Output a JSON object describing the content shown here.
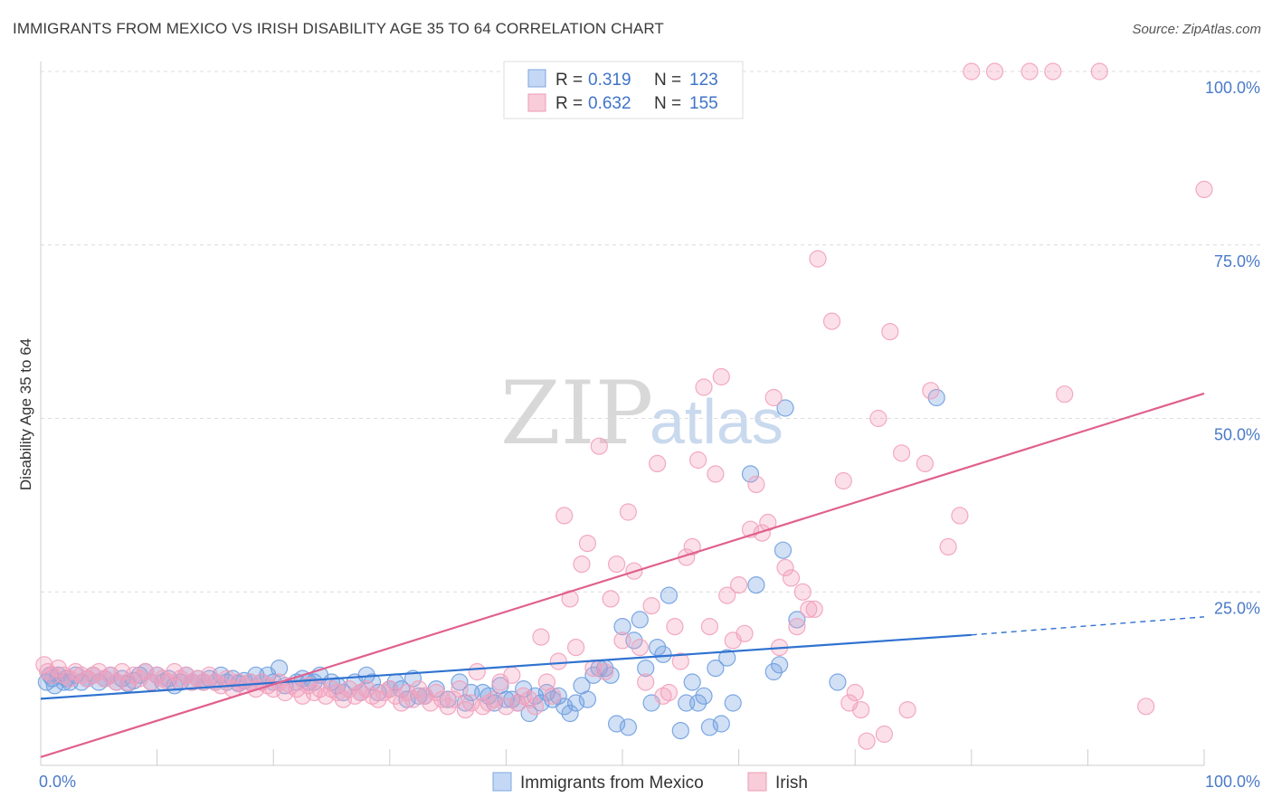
{
  "title": "IMMIGRANTS FROM MEXICO VS IRISH DISABILITY AGE 35 TO 64 CORRELATION CHART",
  "source": "Source: ZipAtlas.com",
  "watermark": {
    "zip": "ZIP",
    "atlas": "atlas"
  },
  "legend": {
    "r_label": "R =",
    "n_label": "N =",
    "rows": [
      {
        "r": "0.319",
        "n": "123"
      },
      {
        "r": "0.632",
        "n": "155"
      }
    ]
  },
  "chart_data": {
    "type": "scatter",
    "xlabel": "",
    "ylabel": "Disability Age 35 to 64",
    "xlim": [
      0,
      100
    ],
    "ylim": [
      0,
      100
    ],
    "x_tick_labels": [
      {
        "value": 0,
        "label": "0.0%"
      },
      {
        "value": 100,
        "label": "100.0%"
      }
    ],
    "y_tick_labels": [
      {
        "value": 25,
        "label": "25.0%"
      },
      {
        "value": 50,
        "label": "50.0%"
      },
      {
        "value": 75,
        "label": "75.0%"
      },
      {
        "value": 100,
        "label": "100.0%"
      }
    ],
    "grid": "horizontal dashed",
    "legend_position": "top-center",
    "series": [
      {
        "name": "Immigrants from Mexico",
        "color": "#6f9fe0",
        "line_color": "#2f72d0",
        "trend": {
          "x0": 0,
          "y0": 9.6,
          "x1": 80,
          "y1": 18.8,
          "x_dashed_end": 100,
          "y_dashed_end": 21.4
        },
        "points": [
          [
            0.5,
            12
          ],
          [
            0.8,
            13
          ],
          [
            1,
            12.5
          ],
          [
            1.2,
            11.5
          ],
          [
            1.5,
            13
          ],
          [
            2,
            12
          ],
          [
            2.2,
            12.5
          ],
          [
            2.5,
            12
          ],
          [
            3,
            13
          ],
          [
            3.5,
            12
          ],
          [
            4,
            12.5
          ],
          [
            4.5,
            13
          ],
          [
            5,
            12
          ],
          [
            5.5,
            12.5
          ],
          [
            6,
            13
          ],
          [
            6.5,
            12
          ],
          [
            7,
            12.5
          ],
          [
            7.5,
            11.8
          ],
          [
            8,
            12.2
          ],
          [
            8.5,
            13
          ],
          [
            9,
            13.5
          ],
          [
            9.5,
            12
          ],
          [
            10,
            13
          ],
          [
            10.5,
            12
          ],
          [
            11,
            12.5
          ],
          [
            11.5,
            11.5
          ],
          [
            12,
            12
          ],
          [
            12.5,
            13
          ],
          [
            13,
            12
          ],
          [
            13.5,
            12.5
          ],
          [
            14,
            12
          ],
          [
            14.5,
            12.5
          ],
          [
            15,
            12
          ],
          [
            15.5,
            13
          ],
          [
            16,
            12
          ],
          [
            16.5,
            12.5
          ],
          [
            17,
            11.8
          ],
          [
            17.5,
            12.2
          ],
          [
            18,
            12
          ],
          [
            18.5,
            13
          ],
          [
            19,
            12
          ],
          [
            19.5,
            13
          ],
          [
            20,
            12
          ],
          [
            20.5,
            14
          ],
          [
            21,
            11.5
          ],
          [
            22,
            12
          ],
          [
            22.5,
            12.5
          ],
          [
            23,
            12
          ],
          [
            23.5,
            12
          ],
          [
            24,
            13
          ],
          [
            25,
            12
          ],
          [
            25.5,
            11.5
          ],
          [
            26,
            10.5
          ],
          [
            27,
            12
          ],
          [
            27.5,
            10.5
          ],
          [
            28,
            13
          ],
          [
            28.5,
            12
          ],
          [
            29,
            10.5
          ],
          [
            30,
            11
          ],
          [
            30.5,
            12
          ],
          [
            31,
            11
          ],
          [
            31.5,
            9.5
          ],
          [
            32,
            12.5
          ],
          [
            32.5,
            10
          ],
          [
            33,
            10
          ],
          [
            34,
            11
          ],
          [
            35,
            9.5
          ],
          [
            36,
            12
          ],
          [
            36.5,
            9
          ],
          [
            37,
            10.5
          ],
          [
            38,
            10.5
          ],
          [
            38.5,
            10
          ],
          [
            39,
            9
          ],
          [
            39.5,
            11.5
          ],
          [
            40,
            9.5
          ],
          [
            40.5,
            9.5
          ],
          [
            41,
            9
          ],
          [
            41.5,
            11
          ],
          [
            42,
            7.5
          ],
          [
            42.5,
            10
          ],
          [
            43,
            9
          ],
          [
            43.5,
            10.5
          ],
          [
            44,
            9.5
          ],
          [
            44.5,
            10
          ],
          [
            45,
            8.5
          ],
          [
            45.5,
            7.5
          ],
          [
            46,
            9
          ],
          [
            46.5,
            11.5
          ],
          [
            47,
            9.5
          ],
          [
            47.5,
            13
          ],
          [
            48,
            14
          ],
          [
            48.5,
            14
          ],
          [
            49,
            13
          ],
          [
            49.5,
            6
          ],
          [
            50,
            20
          ],
          [
            50.5,
            5.5
          ],
          [
            51,
            18
          ],
          [
            51.5,
            21
          ],
          [
            52,
            14
          ],
          [
            52.5,
            9
          ],
          [
            53,
            17
          ],
          [
            53.5,
            16
          ],
          [
            54,
            24.5
          ],
          [
            55,
            5
          ],
          [
            55.5,
            9
          ],
          [
            56,
            12
          ],
          [
            56.5,
            9
          ],
          [
            57,
            10
          ],
          [
            57.5,
            5.5
          ],
          [
            58,
            14
          ],
          [
            58.5,
            6
          ],
          [
            59,
            15.5
          ],
          [
            59.5,
            9
          ],
          [
            61,
            42
          ],
          [
            61.5,
            26
          ],
          [
            63,
            13.5
          ],
          [
            63.5,
            14.5
          ],
          [
            63.8,
            31
          ],
          [
            64,
            51.5
          ],
          [
            65,
            21
          ],
          [
            68.5,
            12
          ],
          [
            77,
            53
          ]
        ]
      },
      {
        "name": "Irish",
        "color": "#f2a0bb",
        "line_color": "#e0608e",
        "trend": {
          "x0": 0,
          "y0": 1.2,
          "x1": 100,
          "y1": 53.6
        },
        "points": [
          [
            0.3,
            14.5
          ],
          [
            0.6,
            13.5
          ],
          [
            1,
            13
          ],
          [
            1.5,
            14
          ],
          [
            2,
            13
          ],
          [
            2.5,
            12.5
          ],
          [
            3,
            13.5
          ],
          [
            3.5,
            13
          ],
          [
            4,
            12.5
          ],
          [
            4.5,
            13
          ],
          [
            5,
            13.5
          ],
          [
            5.5,
            12.5
          ],
          [
            6,
            13
          ],
          [
            6.5,
            12
          ],
          [
            7,
            13.5
          ],
          [
            7.5,
            12
          ],
          [
            8,
            13
          ],
          [
            8.5,
            12.5
          ],
          [
            9,
            13.5
          ],
          [
            9.5,
            12
          ],
          [
            10,
            13
          ],
          [
            10.5,
            12.5
          ],
          [
            11,
            12
          ],
          [
            11.5,
            13.5
          ],
          [
            12,
            12.5
          ],
          [
            12.5,
            13
          ],
          [
            13,
            12
          ],
          [
            13.5,
            12.5
          ],
          [
            14,
            12
          ],
          [
            14.5,
            13
          ],
          [
            15,
            12
          ],
          [
            15.5,
            11.5
          ],
          [
            16,
            12.5
          ],
          [
            16.5,
            11
          ],
          [
            17,
            12
          ],
          [
            17.5,
            11.5
          ],
          [
            18,
            12
          ],
          [
            18.5,
            11
          ],
          [
            19,
            12
          ],
          [
            19.5,
            11.5
          ],
          [
            20,
            11
          ],
          [
            20.5,
            12
          ],
          [
            21,
            10.5
          ],
          [
            21.5,
            11.5
          ],
          [
            22,
            11
          ],
          [
            22.5,
            10
          ],
          [
            23,
            11.5
          ],
          [
            23.5,
            10.5
          ],
          [
            24,
            11
          ],
          [
            24.5,
            10
          ],
          [
            25,
            11
          ],
          [
            25.5,
            10.5
          ],
          [
            26,
            9.5
          ],
          [
            26.5,
            11
          ],
          [
            27,
            10
          ],
          [
            27.5,
            10.5
          ],
          [
            28,
            11
          ],
          [
            28.5,
            10
          ],
          [
            29,
            9.5
          ],
          [
            29.5,
            10.5
          ],
          [
            30,
            11
          ],
          [
            30.5,
            10
          ],
          [
            31,
            9
          ],
          [
            31.5,
            10.5
          ],
          [
            32,
            9.5
          ],
          [
            32.5,
            11
          ],
          [
            33,
            10
          ],
          [
            33.5,
            9
          ],
          [
            34,
            10.5
          ],
          [
            34.5,
            9.5
          ],
          [
            35,
            8.5
          ],
          [
            35.5,
            9.5
          ],
          [
            36,
            11
          ],
          [
            36.5,
            8
          ],
          [
            37,
            9
          ],
          [
            37.5,
            13.5
          ],
          [
            38,
            8.5
          ],
          [
            38.5,
            9
          ],
          [
            39,
            9.5
          ],
          [
            39.5,
            12
          ],
          [
            40,
            8.5
          ],
          [
            40.5,
            13
          ],
          [
            41,
            9
          ],
          [
            41.5,
            10
          ],
          [
            42,
            9.5
          ],
          [
            42.5,
            8.5
          ],
          [
            43,
            18.5
          ],
          [
            43.5,
            12
          ],
          [
            44,
            10
          ],
          [
            44.5,
            15
          ],
          [
            45,
            36
          ],
          [
            45.5,
            24
          ],
          [
            46,
            17
          ],
          [
            46.5,
            29
          ],
          [
            47,
            32
          ],
          [
            47.5,
            14
          ],
          [
            48,
            46
          ],
          [
            48.5,
            13.5
          ],
          [
            49,
            24
          ],
          [
            49.5,
            29
          ],
          [
            50,
            18
          ],
          [
            50.5,
            36.5
          ],
          [
            51,
            28
          ],
          [
            51.5,
            17
          ],
          [
            52,
            12
          ],
          [
            52.5,
            23
          ],
          [
            53,
            43.5
          ],
          [
            53.5,
            10
          ],
          [
            54,
            10.5
          ],
          [
            54.5,
            20
          ],
          [
            55,
            15
          ],
          [
            55.5,
            30
          ],
          [
            56,
            31.5
          ],
          [
            56.5,
            44
          ],
          [
            57,
            54.5
          ],
          [
            57.5,
            20
          ],
          [
            58,
            42
          ],
          [
            58.5,
            56
          ],
          [
            59,
            24.5
          ],
          [
            59.5,
            18
          ],
          [
            60,
            26
          ],
          [
            60.5,
            19
          ],
          [
            61,
            34
          ],
          [
            61.5,
            40.5
          ],
          [
            62,
            33.5
          ],
          [
            62.5,
            35
          ],
          [
            63,
            53
          ],
          [
            63.5,
            17
          ],
          [
            64,
            28.5
          ],
          [
            64.5,
            27
          ],
          [
            65,
            20
          ],
          [
            65.5,
            25
          ],
          [
            66,
            22.5
          ],
          [
            66.5,
            22.5
          ],
          [
            66.8,
            73
          ],
          [
            68,
            64
          ],
          [
            69,
            41
          ],
          [
            69.5,
            9
          ],
          [
            70,
            10.5
          ],
          [
            70.5,
            8
          ],
          [
            71,
            3.5
          ],
          [
            72,
            50
          ],
          [
            72.5,
            4.5
          ],
          [
            73,
            62.5
          ],
          [
            74,
            45
          ],
          [
            74.5,
            8
          ],
          [
            76,
            43.5
          ],
          [
            76.5,
            54
          ],
          [
            78,
            31.5
          ],
          [
            79,
            36
          ],
          [
            80,
            100
          ],
          [
            82,
            100
          ],
          [
            85,
            100
          ],
          [
            87,
            100
          ],
          [
            88,
            53.5
          ],
          [
            91,
            100
          ],
          [
            95,
            8.5
          ],
          [
            100,
            83
          ]
        ]
      }
    ]
  }
}
